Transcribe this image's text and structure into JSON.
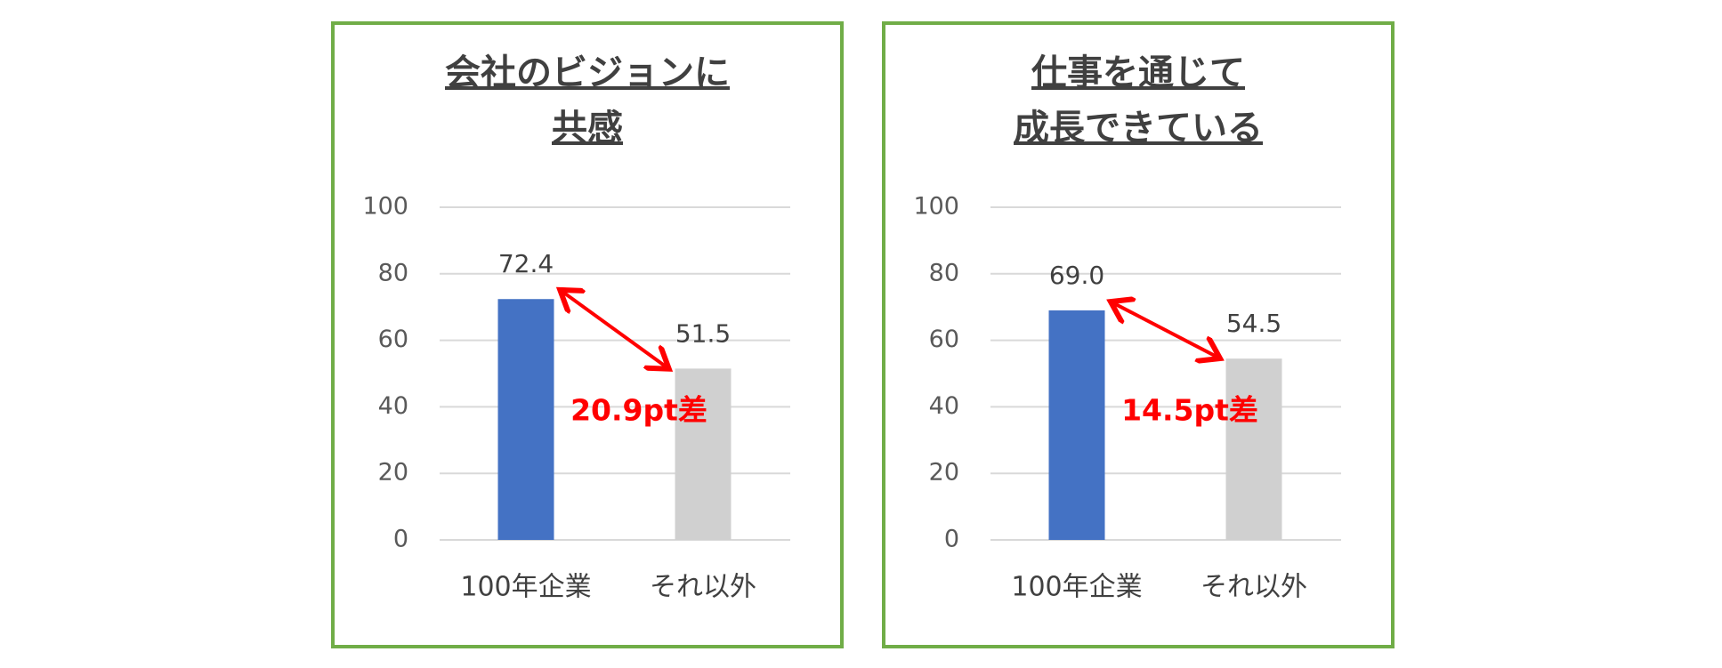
{
  "chart_data": [
    {
      "type": "bar",
      "title": [
        "会社のビジョンに",
        "共感"
      ],
      "categories": [
        "100年企業",
        "それ以外"
      ],
      "values": [
        72.4,
        51.5
      ],
      "colors": [
        "#4472c4",
        "#d0d0d0"
      ],
      "ylim": [
        0,
        100
      ],
      "yticks": [
        0,
        20,
        40,
        60,
        80,
        100
      ],
      "grid": true,
      "annotation": "20.9pt差"
    },
    {
      "type": "bar",
      "title": [
        "仕事を通じて",
        "成長できている"
      ],
      "categories": [
        "100年企業",
        "それ以外"
      ],
      "values": [
        69.0,
        54.5
      ],
      "value_labels": [
        "69.0",
        "54.5"
      ],
      "colors": [
        "#4472c4",
        "#d0d0d0"
      ],
      "ylim": [
        0,
        100
      ],
      "yticks": [
        0,
        20,
        40,
        60,
        80,
        100
      ],
      "grid": true,
      "annotation": "14.5pt差"
    }
  ]
}
